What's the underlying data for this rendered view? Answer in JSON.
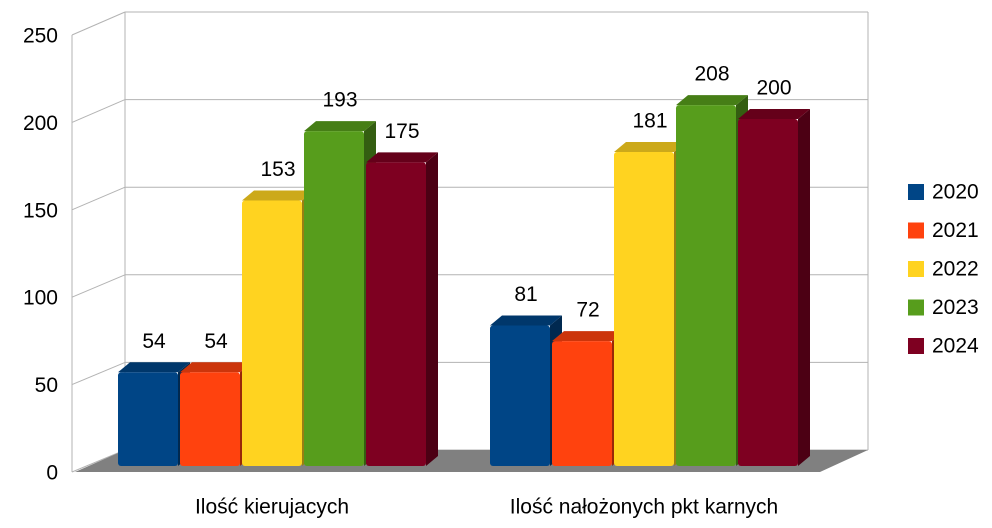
{
  "chart_data": {
    "type": "bar3d",
    "categories": [
      "Ilość kierujacych",
      "Ilość nałożonych pkt karnych"
    ],
    "series": [
      {
        "name": "2020",
        "color": "#004586",
        "values": [
          54,
          81
        ]
      },
      {
        "name": "2021",
        "color": "#ff420e",
        "values": [
          54,
          72
        ]
      },
      {
        "name": "2022",
        "color": "#ffd320",
        "values": [
          153,
          181
        ]
      },
      {
        "name": "2023",
        "color": "#579d1c",
        "values": [
          193,
          208
        ]
      },
      {
        "name": "2024",
        "color": "#7e0021",
        "values": [
          175,
          200
        ]
      }
    ],
    "ylim": [
      0,
      250
    ],
    "yticks": [
      0,
      50,
      100,
      150,
      200,
      250
    ],
    "grid": true,
    "legend": "right"
  }
}
